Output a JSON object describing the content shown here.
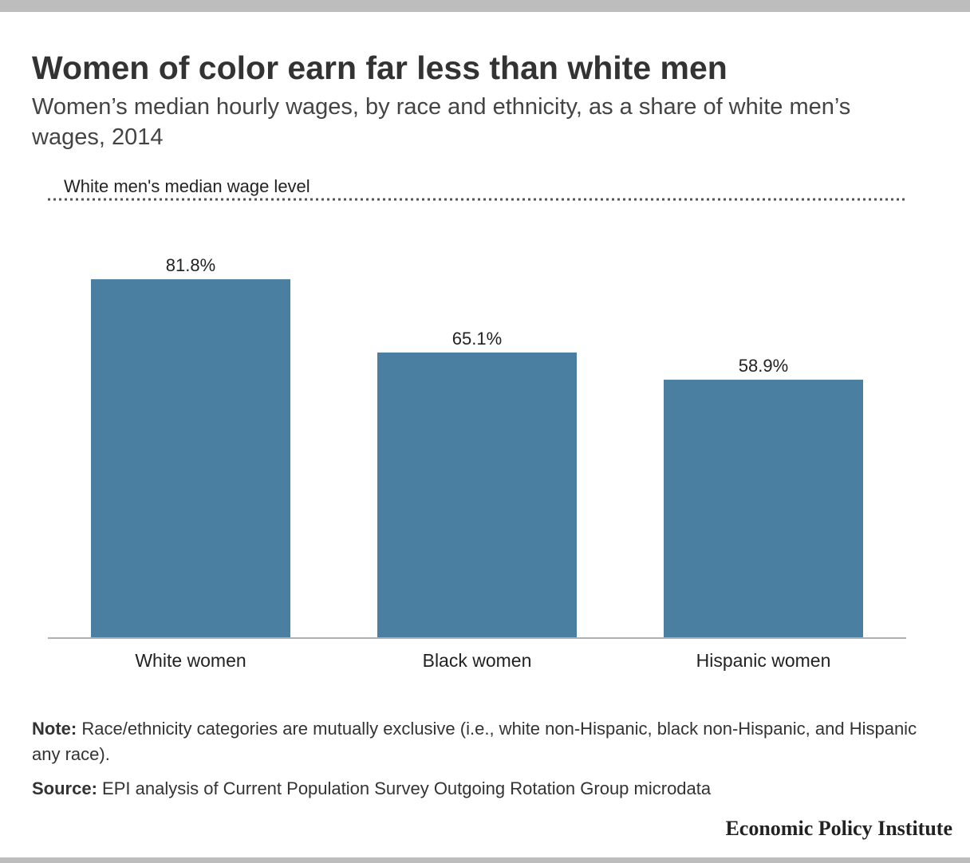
{
  "title": "Women of color earn far less than white men",
  "subtitle": "Women’s median hourly wages, by race and ethnicity, as a share of white men’s wages, 2014",
  "note": {
    "label": "Note:",
    "text": "Race/ethnicity categories are mutually exclusive (i.e., white non-Hispanic, black non-Hispanic, and Hispanic any race)."
  },
  "source": {
    "label": "Source:",
    "text": "EPI analysis of Current Population Survey Outgoing Rotation Group microdata"
  },
  "brand": "Economic Policy Institute",
  "chart_data": {
    "type": "bar",
    "title": "Women of color earn far less than white men",
    "subtitle": "Women’s median hourly wages, by race and ethnicity, as a share of white men’s wages, 2014",
    "categories": [
      "White women",
      "Black women",
      "Hispanic women"
    ],
    "values": [
      81.8,
      65.1,
      58.9
    ],
    "value_labels": [
      "81.8%",
      "65.1%",
      "58.9%"
    ],
    "ylim": [
      0,
      100
    ],
    "reference_line": {
      "value": 100,
      "label": "White men's median wage level",
      "style": "dotted"
    },
    "grid": false,
    "bar_color": "#4a7fa1",
    "xlabel": "",
    "ylabel": ""
  }
}
